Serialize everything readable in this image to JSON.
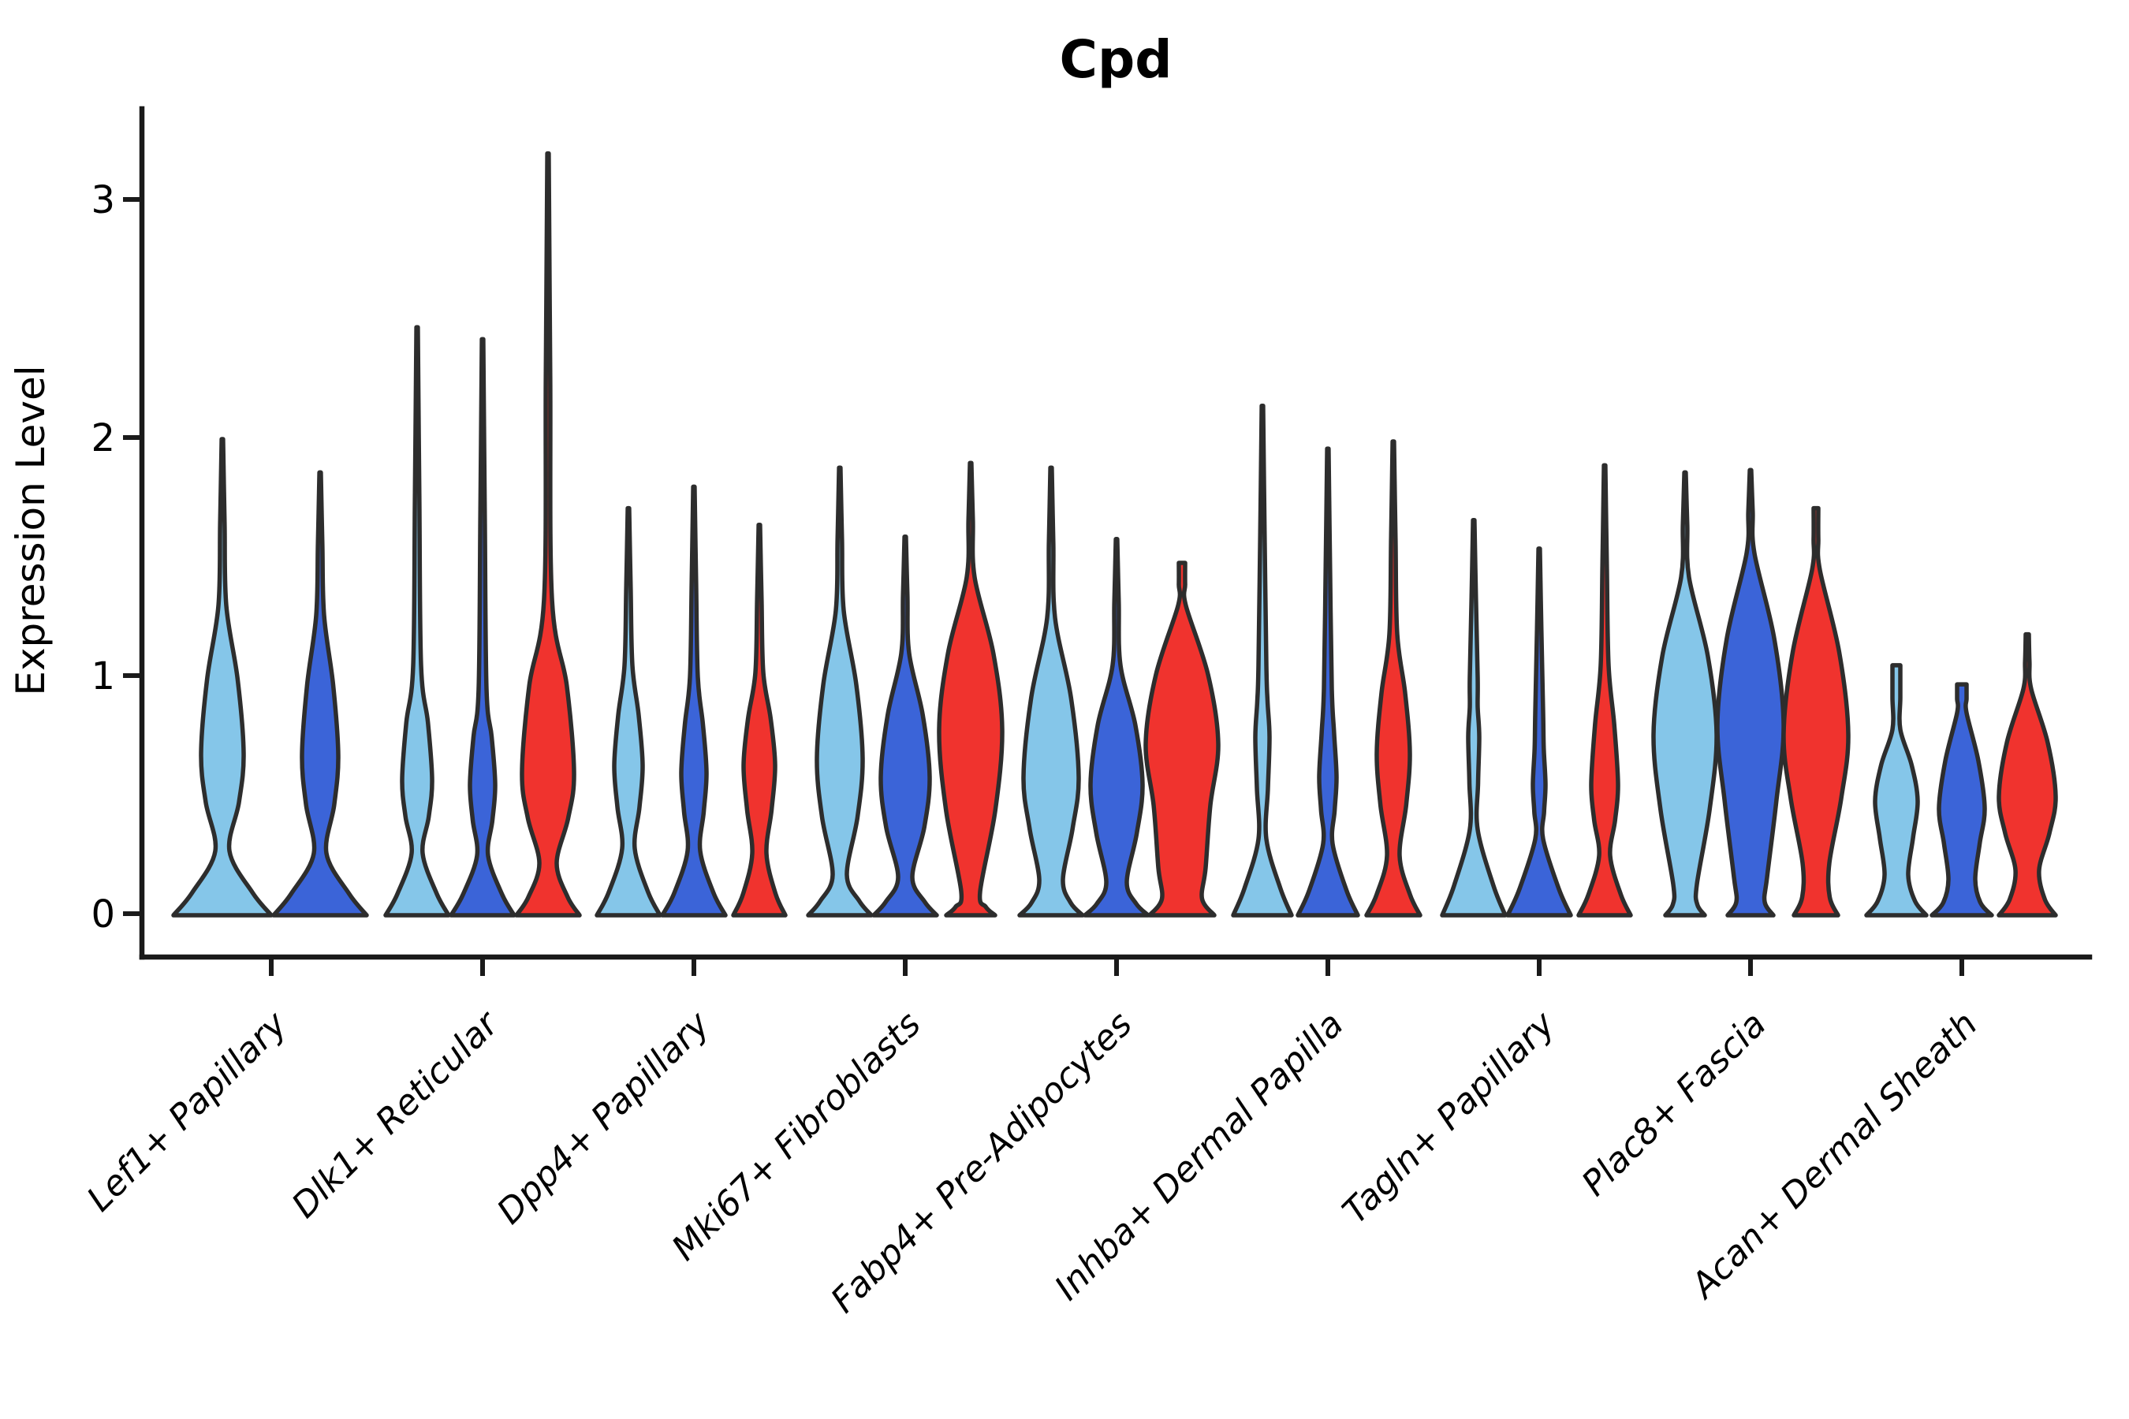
{
  "title": "Cpd",
  "ylabel": "Expression Level",
  "chart_data": {
    "type": "violin",
    "title": "Cpd",
    "xlabel": "",
    "ylabel": "Expression Level",
    "ylim": [
      0,
      3.35
    ],
    "yticks": [
      0,
      1,
      2,
      3
    ],
    "ytick_labels": [
      "0",
      "1",
      "2",
      "3"
    ],
    "grid": false,
    "legend": "none",
    "x_label_rotation_deg": 45,
    "series_colors": {
      "light_blue": "#85C6E9",
      "dark_blue": "#3B64D8",
      "red": "#F0332E"
    },
    "outline_color": "#2d2d2d",
    "groups": [
      {
        "label": "Lef1+ Papillary",
        "violins": [
          {
            "color": "light_blue",
            "offset": -62,
            "max": 2.0,
            "shoulder": 1.3,
            "bulge": 0.68,
            "bulge_hw": 27,
            "waist": 0.27,
            "waist_hw": 9,
            "base_hw": 62
          },
          {
            "color": "dark_blue",
            "offset": 62,
            "max": 1.86,
            "shoulder": 1.26,
            "bulge": 0.67,
            "bulge_hw": 23,
            "waist": 0.26,
            "waist_hw": 8,
            "base_hw": 59
          }
        ]
      },
      {
        "label": "Dlk1+ Reticular",
        "violins": [
          {
            "color": "light_blue",
            "offset": -83,
            "max": 2.47,
            "shoulder": 1.05,
            "bulge": 0.57,
            "bulge_hw": 19,
            "waist": 0.26,
            "waist_hw": 7,
            "base_hw": 40
          },
          {
            "color": "dark_blue",
            "offset": 0,
            "max": 2.42,
            "shoulder": 0.95,
            "bulge": 0.55,
            "bulge_hw": 16,
            "waist": 0.25,
            "waist_hw": 7,
            "base_hw": 40
          },
          {
            "color": "red",
            "offset": 83,
            "max": 3.2,
            "shoulder": 1.33,
            "bulge": 0.6,
            "bulge_hw": 33,
            "waist": 0.22,
            "waist_hw": 11,
            "base_hw": 40
          }
        ]
      },
      {
        "label": "Dpp4+ Papillary",
        "violins": [
          {
            "color": "light_blue",
            "offset": -83,
            "max": 1.71,
            "shoulder": 1.05,
            "bulge": 0.63,
            "bulge_hw": 18,
            "waist": 0.28,
            "waist_hw": 8,
            "base_hw": 40
          },
          {
            "color": "dark_blue",
            "offset": 0,
            "max": 1.8,
            "shoulder": 1.0,
            "bulge": 0.6,
            "bulge_hw": 16,
            "waist": 0.27,
            "waist_hw": 8,
            "base_hw": 40
          },
          {
            "color": "red",
            "offset": 83,
            "max": 1.64,
            "shoulder": 1.02,
            "bulge": 0.63,
            "bulge_hw": 20,
            "waist": 0.26,
            "waist_hw": 9,
            "base_hw": 33
          }
        ]
      },
      {
        "label": "Mki67+ Fibroblasts",
        "violins": [
          {
            "color": "light_blue",
            "offset": -83,
            "max": 1.88,
            "shoulder": 1.28,
            "bulge": 0.66,
            "bulge_hw": 29,
            "waist": 0.17,
            "waist_hw": 9,
            "base_hw": 40
          },
          {
            "color": "dark_blue",
            "offset": 0,
            "max": 1.59,
            "shoulder": 1.1,
            "bulge": 0.58,
            "bulge_hw": 31,
            "waist": 0.16,
            "waist_hw": 9,
            "base_hw": 40
          },
          {
            "color": "red",
            "offset": 83,
            "max": 1.9,
            "shoulder": 1.42,
            "bulge": 0.78,
            "bulge_hw": 40,
            "waist": 0.1,
            "waist_hw": 12,
            "base_hw": 31
          }
        ]
      },
      {
        "label": "Fabp4+ Pre-Adipocytes",
        "violins": [
          {
            "color": "light_blue",
            "offset": -83,
            "max": 1.88,
            "shoulder": 1.25,
            "bulge": 0.58,
            "bulge_hw": 35,
            "waist": 0.15,
            "waist_hw": 15,
            "base_hw": 40
          },
          {
            "color": "dark_blue",
            "offset": 0,
            "max": 1.58,
            "shoulder": 1.05,
            "bulge": 0.55,
            "bulge_hw": 33,
            "waist": 0.14,
            "waist_hw": 13,
            "base_hw": 40
          },
          {
            "color": "red",
            "offset": 83,
            "max": 1.48,
            "shoulder": 1.3,
            "bulge": 0.72,
            "bulge_hw": 46,
            "waist": 0.2,
            "waist_hw": 30,
            "base_hw": 41,
            "tip_hw": 4
          }
        ]
      },
      {
        "label": "Inhba+ Dermal Papilla",
        "violins": [
          {
            "color": "light_blue",
            "offset": -83,
            "max": 2.14,
            "shoulder": 1.05,
            "bulge": 0.75,
            "bulge_hw": 9,
            "waist": 0.32,
            "waist_hw": 5,
            "base_hw": 37
          },
          {
            "color": "dark_blue",
            "offset": 0,
            "max": 1.96,
            "shoulder": 0.95,
            "bulge": 0.58,
            "bulge_hw": 11,
            "waist": 0.3,
            "waist_hw": 6,
            "base_hw": 38
          },
          {
            "color": "red",
            "offset": 83,
            "max": 1.99,
            "shoulder": 1.18,
            "bulge": 0.68,
            "bulge_hw": 21,
            "waist": 0.25,
            "waist_hw": 8,
            "base_hw": 34
          }
        ]
      },
      {
        "label": "Tagln+ Papillary",
        "violins": [
          {
            "color": "light_blue",
            "offset": -83,
            "max": 1.66,
            "shoulder": 1.0,
            "bulge": 0.75,
            "bulge_hw": 7,
            "waist": 0.36,
            "waist_hw": 5,
            "base_hw": 40
          },
          {
            "color": "dark_blue",
            "offset": 0,
            "max": 1.54,
            "shoulder": 0.85,
            "bulge": 0.55,
            "bulge_hw": 8,
            "waist": 0.32,
            "waist_hw": 5,
            "base_hw": 40
          },
          {
            "color": "red",
            "offset": 83,
            "max": 1.89,
            "shoulder": 1.05,
            "bulge": 0.55,
            "bulge_hw": 17,
            "waist": 0.25,
            "waist_hw": 7,
            "base_hw": 33
          }
        ]
      },
      {
        "label": "Plac8+ Fascia",
        "violins": [
          {
            "color": "light_blue",
            "offset": -83,
            "max": 1.86,
            "shoulder": 1.42,
            "bulge": 0.76,
            "bulge_hw": 40,
            "waist": 0.13,
            "waist_hw": 15,
            "base_hw": 25
          },
          {
            "color": "dark_blue",
            "offset": 0,
            "max": 1.87,
            "shoulder": 1.52,
            "bulge": 0.8,
            "bulge_hw": 42,
            "waist": 0.16,
            "waist_hw": 21,
            "base_hw": 29
          },
          {
            "color": "red",
            "offset": 83,
            "max": 1.71,
            "shoulder": 1.45,
            "bulge": 0.76,
            "bulge_hw": 41,
            "waist": 0.22,
            "waist_hw": 17,
            "base_hw": 28,
            "tip_hw": 3
          }
        ]
      },
      {
        "label": "Acan+ Dermal Sheath",
        "violins": [
          {
            "color": "light_blue",
            "offset": -83,
            "max": 1.05,
            "shoulder": 0.78,
            "bulge": 0.48,
            "bulge_hw": 27,
            "waist": 0.17,
            "waist_hw": 15,
            "base_hw": 38,
            "tip_hw": 5
          },
          {
            "color": "dark_blue",
            "offset": 0,
            "max": 0.97,
            "shoulder": 0.85,
            "bulge": 0.45,
            "bulge_hw": 29,
            "waist": 0.15,
            "waist_hw": 17,
            "base_hw": 38,
            "tip_hw": 6
          },
          {
            "color": "red",
            "offset": 83,
            "max": 1.18,
            "shoulder": 0.95,
            "bulge": 0.5,
            "bulge_hw": 36,
            "waist": 0.19,
            "waist_hw": 15,
            "base_hw": 36,
            "tip_hw": 2
          }
        ]
      }
    ]
  }
}
